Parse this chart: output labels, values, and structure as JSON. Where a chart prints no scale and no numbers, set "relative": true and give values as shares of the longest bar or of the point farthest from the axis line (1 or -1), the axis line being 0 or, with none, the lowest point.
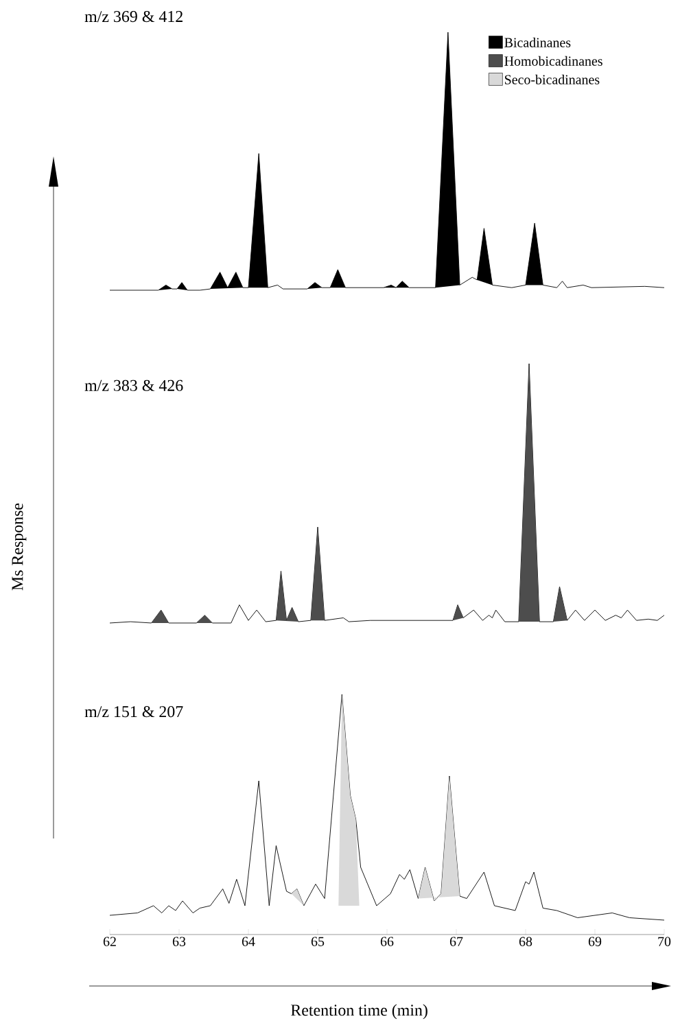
{
  "chart_data": [
    {
      "type": "line",
      "title": "m/z 369 & 412",
      "relative": true,
      "xlim": [
        62,
        70
      ],
      "tick_labels": false,
      "legend": "top right",
      "series": [
        {
          "color": "#000000",
          "x": [
            62.0,
            62.7,
            62.81,
            62.9,
            62.97,
            63.04,
            63.12,
            63.3,
            63.45,
            63.59,
            63.7,
            63.82,
            63.92,
            64.0,
            64.15,
            64.28,
            64.42,
            64.5,
            64.85,
            64.96,
            65.06,
            65.18,
            65.29,
            65.4,
            65.7,
            65.95,
            66.06,
            66.13,
            66.22,
            66.32,
            66.7,
            66.88,
            67.05,
            67.23,
            67.3,
            67.4,
            67.52,
            67.8,
            68.0,
            68.13,
            68.25,
            68.45,
            68.53,
            68.6,
            68.83,
            68.95,
            69.72,
            70.0
          ],
          "values": [
            0.0,
            0.0,
            0.02,
            0.005,
            0.005,
            0.03,
            0.0,
            0.0,
            0.005,
            0.07,
            0.01,
            0.07,
            0.01,
            0.01,
            0.53,
            0.01,
            0.02,
            0.005,
            0.005,
            0.03,
            0.01,
            0.01,
            0.08,
            0.01,
            0.01,
            0.01,
            0.02,
            0.01,
            0.035,
            0.01,
            0.01,
            1.0,
            0.02,
            0.05,
            0.04,
            0.24,
            0.02,
            0.01,
            0.02,
            0.26,
            0.02,
            0.01,
            0.035,
            0.01,
            0.02,
            0.01,
            0.015,
            0.01
          ]
        },
        {
          "type": "area",
          "name": "Bicadinanes",
          "color": "#000000",
          "x": [
            62.7,
            62.81,
            62.9,
            null,
            62.97,
            63.04,
            63.12,
            null,
            63.45,
            63.59,
            63.7,
            63.82,
            63.92,
            null,
            64.0,
            64.15,
            64.28,
            null,
            64.85,
            64.96,
            65.06,
            null,
            65.18,
            65.29,
            65.4,
            null,
            65.95,
            66.06,
            66.13,
            66.22,
            66.32,
            null,
            66.7,
            66.88,
            67.05,
            null,
            67.3,
            67.4,
            67.52,
            null,
            68.0,
            68.13,
            68.25
          ],
          "values": [
            0.0,
            0.02,
            0.005,
            null,
            0.005,
            0.03,
            0.0,
            null,
            0.005,
            0.07,
            0.01,
            0.07,
            0.01,
            null,
            0.01,
            0.53,
            0.01,
            null,
            0.005,
            0.03,
            0.01,
            null,
            0.01,
            0.08,
            0.01,
            null,
            0.01,
            0.02,
            0.01,
            0.035,
            0.01,
            null,
            0.01,
            1.0,
            0.02,
            null,
            0.04,
            0.24,
            0.02,
            null,
            0.02,
            0.26,
            0.02
          ]
        }
      ]
    },
    {
      "type": "line",
      "title": "m/z 383 & 426",
      "ylabel": "Ms Response",
      "relative": true,
      "xlim": [
        62,
        70
      ],
      "tick_labels": false,
      "legend": "top right",
      "series": [
        {
          "color": "#000000",
          "x": [
            62.0,
            62.3,
            62.6,
            62.74,
            62.85,
            63.25,
            63.37,
            63.48,
            63.75,
            63.87,
            64.0,
            64.12,
            64.25,
            64.4,
            64.47,
            64.55,
            64.63,
            64.72,
            64.9,
            65.0,
            65.1,
            65.37,
            65.45,
            65.76,
            66.16,
            66.55,
            66.95,
            67.02,
            67.1,
            67.25,
            67.38,
            67.47,
            67.52,
            67.57,
            67.7,
            67.9,
            68.05,
            68.2,
            68.4,
            68.49,
            68.6,
            68.72,
            68.85,
            69.0,
            69.15,
            69.3,
            69.38,
            69.47,
            69.6,
            69.77,
            69.9,
            70.0
          ],
          "values": [
            0.0,
            0.005,
            0.0,
            0.05,
            0.0,
            0.0,
            0.03,
            0.0,
            0.0,
            0.07,
            0.01,
            0.05,
            0.005,
            0.01,
            0.2,
            0.01,
            0.06,
            0.005,
            0.01,
            0.37,
            0.01,
            0.02,
            0.005,
            0.01,
            0.01,
            0.01,
            0.01,
            0.07,
            0.02,
            0.05,
            0.01,
            0.03,
            0.02,
            0.05,
            0.005,
            0.005,
            1.0,
            0.005,
            0.005,
            0.14,
            0.01,
            0.05,
            0.01,
            0.05,
            0.01,
            0.03,
            0.02,
            0.05,
            0.01,
            0.015,
            0.01,
            0.03
          ]
        },
        {
          "type": "area",
          "name": "Homobicadinanes",
          "color": "#4d4d4d",
          "x": [
            62.6,
            62.74,
            62.85,
            null,
            63.25,
            63.37,
            63.48,
            null,
            64.4,
            64.47,
            64.55,
            64.63,
            64.72,
            null,
            64.9,
            65.0,
            65.1,
            null,
            66.95,
            67.02,
            67.1,
            null,
            67.9,
            68.05,
            68.2,
            null,
            68.4,
            68.49,
            68.6
          ],
          "values": [
            0.0,
            0.05,
            0.0,
            null,
            0.0,
            0.03,
            0.0,
            null,
            0.01,
            0.2,
            0.01,
            0.06,
            0.005,
            null,
            0.01,
            0.37,
            0.01,
            null,
            0.01,
            0.07,
            0.02,
            null,
            0.005,
            1.0,
            0.005,
            null,
            0.005,
            0.14,
            0.01
          ]
        }
      ]
    },
    {
      "type": "line",
      "title": "m/z 151 & 207",
      "xlabel": "Retention time (min)",
      "relative": true,
      "legend": "top right",
      "xlim": [
        62,
        70
      ],
      "xticks": [
        62,
        63,
        64,
        65,
        66,
        67,
        68,
        69,
        70
      ],
      "series": [
        {
          "color": "#000000",
          "x": [
            62.0,
            62.4,
            62.63,
            62.75,
            62.85,
            62.95,
            63.05,
            63.2,
            63.3,
            63.45,
            63.63,
            63.72,
            63.83,
            63.95,
            64.15,
            64.3,
            64.4,
            64.55,
            64.62,
            64.7,
            64.8,
            64.97,
            65.1,
            65.35,
            65.47,
            65.55,
            65.62,
            65.85,
            66.05,
            66.18,
            66.25,
            66.33,
            66.45,
            66.55,
            66.68,
            66.78,
            66.9,
            67.05,
            67.15,
            67.4,
            67.55,
            67.85,
            68.0,
            68.05,
            68.12,
            68.25,
            68.45,
            68.75,
            69.25,
            69.5,
            70.0
          ],
          "values": [
            0.08,
            0.09,
            0.12,
            0.09,
            0.12,
            0.1,
            0.14,
            0.09,
            0.11,
            0.12,
            0.19,
            0.13,
            0.23,
            0.12,
            0.64,
            0.12,
            0.37,
            0.18,
            0.17,
            0.19,
            0.12,
            0.21,
            0.15,
            1.0,
            0.58,
            0.48,
            0.28,
            0.12,
            0.17,
            0.25,
            0.23,
            0.27,
            0.15,
            0.28,
            0.14,
            0.17,
            0.66,
            0.16,
            0.15,
            0.26,
            0.12,
            0.1,
            0.22,
            0.21,
            0.26,
            0.11,
            0.1,
            0.07,
            0.09,
            0.07,
            0.06
          ]
        },
        {
          "type": "area",
          "name": "Seco-bicadinanes",
          "color": "#d9d9d9",
          "x": [
            64.62,
            64.7,
            64.8,
            null,
            65.3,
            65.35,
            65.47,
            65.55,
            65.6,
            null,
            66.45,
            66.55,
            66.68,
            66.78,
            66.9,
            67.05
          ],
          "values": [
            0.17,
            0.19,
            0.12,
            null,
            0.12,
            1.0,
            0.58,
            0.48,
            0.12,
            null,
            0.15,
            0.28,
            0.14,
            0.17,
            0.66,
            0.16
          ]
        }
      ]
    }
  ]
}
